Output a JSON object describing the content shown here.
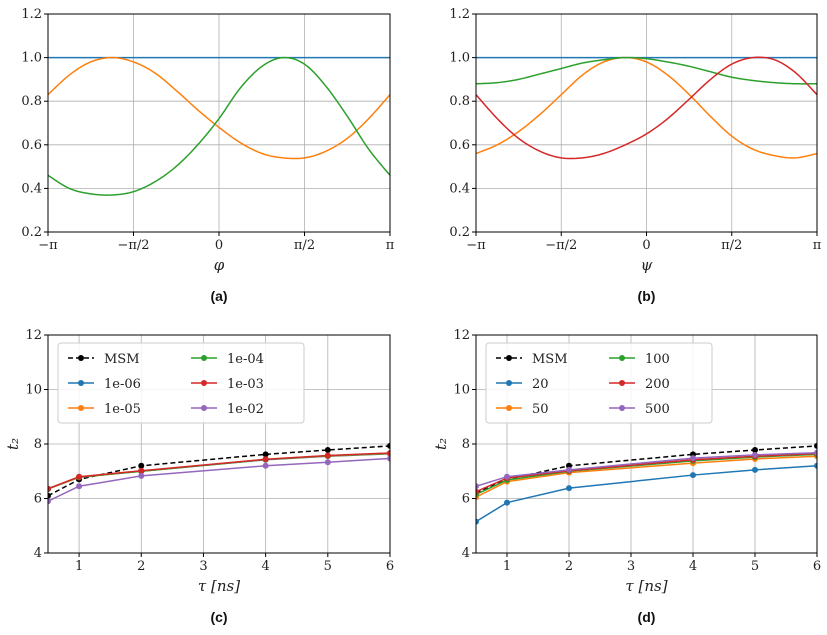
{
  "chart_data": [
    {
      "panel": "a",
      "caption": "(a)",
      "type": "line",
      "xlabel": "φ",
      "ylabel": "",
      "xlim": [
        -3.14159,
        3.14159
      ],
      "ylim": [
        0.2,
        1.2
      ],
      "xticks": [
        {
          "value": -3.14159,
          "label": "−π"
        },
        {
          "value": -1.5708,
          "label": "−π/2"
        },
        {
          "value": 0,
          "label": "0"
        },
        {
          "value": 1.5708,
          "label": "π/2"
        },
        {
          "value": 3.14159,
          "label": "π"
        }
      ],
      "yticks": [
        "0.2",
        "0.4",
        "0.6",
        "0.8",
        "1.0",
        "1.2"
      ],
      "grid": true,
      "series": [
        {
          "color": "#1f77b4",
          "x": [
            -3.14159,
            3.14159
          ],
          "y": [
            1.0,
            1.0
          ]
        },
        {
          "color": "#ff7f0e",
          "x": [
            -3.14159,
            -2.75,
            -2.36,
            -1.96,
            -1.57,
            -1.18,
            -0.79,
            -0.39,
            0.0,
            0.39,
            0.79,
            1.18,
            1.57,
            1.96,
            2.36,
            2.75,
            3.14159
          ],
          "y": [
            0.83,
            0.92,
            0.98,
            1.0,
            0.98,
            0.93,
            0.85,
            0.76,
            0.68,
            0.61,
            0.56,
            0.54,
            0.54,
            0.57,
            0.63,
            0.72,
            0.83
          ]
        },
        {
          "color": "#2ca02c",
          "x": [
            -3.14159,
            -2.75,
            -2.36,
            -1.96,
            -1.57,
            -1.18,
            -0.79,
            -0.39,
            0.0,
            0.39,
            0.79,
            1.18,
            1.57,
            1.96,
            2.36,
            2.75,
            3.14159
          ],
          "y": [
            0.46,
            0.4,
            0.375,
            0.37,
            0.385,
            0.43,
            0.5,
            0.6,
            0.72,
            0.86,
            0.96,
            1.0,
            0.97,
            0.87,
            0.73,
            0.58,
            0.46
          ]
        }
      ]
    },
    {
      "panel": "b",
      "caption": "(b)",
      "type": "line",
      "xlabel": "ψ",
      "ylabel": "",
      "xlim": [
        -3.14159,
        3.14159
      ],
      "ylim": [
        0.2,
        1.2
      ],
      "xticks": [
        {
          "value": -3.14159,
          "label": "−π"
        },
        {
          "value": -1.5708,
          "label": "−π/2"
        },
        {
          "value": 0,
          "label": "0"
        },
        {
          "value": 1.5708,
          "label": "π/2"
        },
        {
          "value": 3.14159,
          "label": "π"
        }
      ],
      "yticks": [
        "0.2",
        "0.4",
        "0.6",
        "0.8",
        "1.0",
        "1.2"
      ],
      "grid": true,
      "series": [
        {
          "color": "#1f77b4",
          "x": [
            -3.14159,
            3.14159
          ],
          "y": [
            1.0,
            1.0
          ]
        },
        {
          "color": "#ff7f0e",
          "x": [
            -3.14159,
            -2.75,
            -2.36,
            -1.96,
            -1.57,
            -1.18,
            -0.79,
            -0.39,
            0.0,
            0.39,
            0.79,
            1.18,
            1.57,
            1.96,
            2.36,
            2.75,
            3.14159
          ],
          "y": [
            0.56,
            0.6,
            0.66,
            0.74,
            0.83,
            0.92,
            0.98,
            1.0,
            0.98,
            0.92,
            0.83,
            0.73,
            0.64,
            0.58,
            0.55,
            0.54,
            0.56
          ]
        },
        {
          "color": "#2ca02c",
          "x": [
            -3.14159,
            -2.75,
            -2.36,
            -1.96,
            -1.57,
            -1.18,
            -0.79,
            -0.39,
            0.0,
            0.39,
            0.79,
            1.18,
            1.57,
            1.96,
            2.36,
            2.75,
            3.14159
          ],
          "y": [
            0.88,
            0.885,
            0.9,
            0.925,
            0.95,
            0.975,
            0.99,
            1.0,
            0.995,
            0.98,
            0.96,
            0.935,
            0.91,
            0.895,
            0.885,
            0.88,
            0.88
          ]
        },
        {
          "color": "#d62728",
          "x": [
            -3.14159,
            -2.75,
            -2.36,
            -1.96,
            -1.57,
            -1.18,
            -0.79,
            -0.39,
            0.0,
            0.39,
            0.79,
            1.18,
            1.57,
            1.96,
            2.36,
            2.75,
            3.14159
          ],
          "y": [
            0.83,
            0.72,
            0.63,
            0.57,
            0.54,
            0.54,
            0.56,
            0.6,
            0.65,
            0.72,
            0.81,
            0.9,
            0.97,
            1.0,
            0.99,
            0.93,
            0.83
          ]
        }
      ]
    },
    {
      "panel": "c",
      "caption": "(c)",
      "type": "line",
      "xlabel": "τ [ns]",
      "ylabel": "t₂",
      "xlim": [
        0.5,
        6
      ],
      "ylim": [
        4,
        12
      ],
      "xticks": [
        {
          "value": 1,
          "label": "1"
        },
        {
          "value": 2,
          "label": "2"
        },
        {
          "value": 3,
          "label": "3"
        },
        {
          "value": 4,
          "label": "4"
        },
        {
          "value": 5,
          "label": "5"
        },
        {
          "value": 6,
          "label": "6"
        }
      ],
      "yticks": [
        "4",
        "6",
        "8",
        "10",
        "12"
      ],
      "grid": true,
      "legend": "upper-left, 2 columns",
      "series": [
        {
          "name": "MSM",
          "color": "#000000",
          "dashed": true,
          "x": [
            0.5,
            1,
            2,
            4,
            5,
            6
          ],
          "y": [
            6.1,
            6.7,
            7.2,
            7.62,
            7.78,
            7.93
          ]
        },
        {
          "name": "1e-06",
          "color": "#1f77b4",
          "x": [
            0.5,
            1,
            2,
            4,
            5,
            6
          ],
          "y": [
            6.35,
            6.78,
            7.0,
            7.42,
            7.55,
            7.64
          ]
        },
        {
          "name": "1e-05",
          "color": "#ff7f0e",
          "x": [
            0.5,
            1,
            2,
            4,
            5,
            6
          ],
          "y": [
            6.35,
            6.78,
            7.0,
            7.43,
            7.56,
            7.65
          ]
        },
        {
          "name": "1e-04",
          "color": "#2ca02c",
          "x": [
            0.5,
            1,
            2,
            4,
            5,
            6
          ],
          "y": [
            6.35,
            6.79,
            7.0,
            7.43,
            7.57,
            7.66
          ]
        },
        {
          "name": "1e-03",
          "color": "#d62728",
          "x": [
            0.5,
            1,
            2,
            4,
            5,
            6
          ],
          "y": [
            6.36,
            6.8,
            7.02,
            7.44,
            7.58,
            7.67
          ]
        },
        {
          "name": "1e-02",
          "color": "#9467bd",
          "x": [
            0.5,
            1,
            2,
            4,
            5,
            6
          ],
          "y": [
            5.9,
            6.45,
            6.83,
            7.2,
            7.33,
            7.47
          ]
        }
      ]
    },
    {
      "panel": "d",
      "caption": "(d)",
      "type": "line",
      "xlabel": "τ [ns]",
      "ylabel": "t₂",
      "xlim": [
        0.5,
        6
      ],
      "ylim": [
        4,
        12
      ],
      "xticks": [
        {
          "value": 1,
          "label": "1"
        },
        {
          "value": 2,
          "label": "2"
        },
        {
          "value": 3,
          "label": "3"
        },
        {
          "value": 4,
          "label": "4"
        },
        {
          "value": 5,
          "label": "5"
        },
        {
          "value": 6,
          "label": "6"
        }
      ],
      "yticks": [
        "4",
        "6",
        "8",
        "10",
        "12"
      ],
      "grid": true,
      "legend": "upper-left, 2 columns",
      "series": [
        {
          "name": "MSM",
          "color": "#000000",
          "dashed": true,
          "x": [
            0.5,
            1,
            2,
            4,
            5,
            6
          ],
          "y": [
            6.2,
            6.7,
            7.2,
            7.62,
            7.78,
            7.93
          ]
        },
        {
          "name": "20",
          "color": "#1f77b4",
          "x": [
            0.5,
            1,
            2,
            4,
            5,
            6
          ],
          "y": [
            5.15,
            5.85,
            6.38,
            6.86,
            7.05,
            7.2
          ]
        },
        {
          "name": "50",
          "color": "#ff7f0e",
          "x": [
            0.5,
            1,
            2,
            4,
            5,
            6
          ],
          "y": [
            6.05,
            6.62,
            6.95,
            7.3,
            7.45,
            7.55
          ]
        },
        {
          "name": "100",
          "color": "#2ca02c",
          "x": [
            0.5,
            1,
            2,
            4,
            5,
            6
          ],
          "y": [
            6.15,
            6.68,
            7.0,
            7.38,
            7.52,
            7.62
          ]
        },
        {
          "name": "200",
          "color": "#d62728",
          "x": [
            0.5,
            1,
            2,
            4,
            5,
            6
          ],
          "y": [
            6.25,
            6.75,
            7.02,
            7.42,
            7.55,
            7.65
          ]
        },
        {
          "name": "500",
          "color": "#9467bd",
          "x": [
            0.5,
            1,
            2,
            4,
            5,
            6
          ],
          "y": [
            6.45,
            6.8,
            7.05,
            7.48,
            7.6,
            7.68
          ]
        }
      ]
    }
  ]
}
